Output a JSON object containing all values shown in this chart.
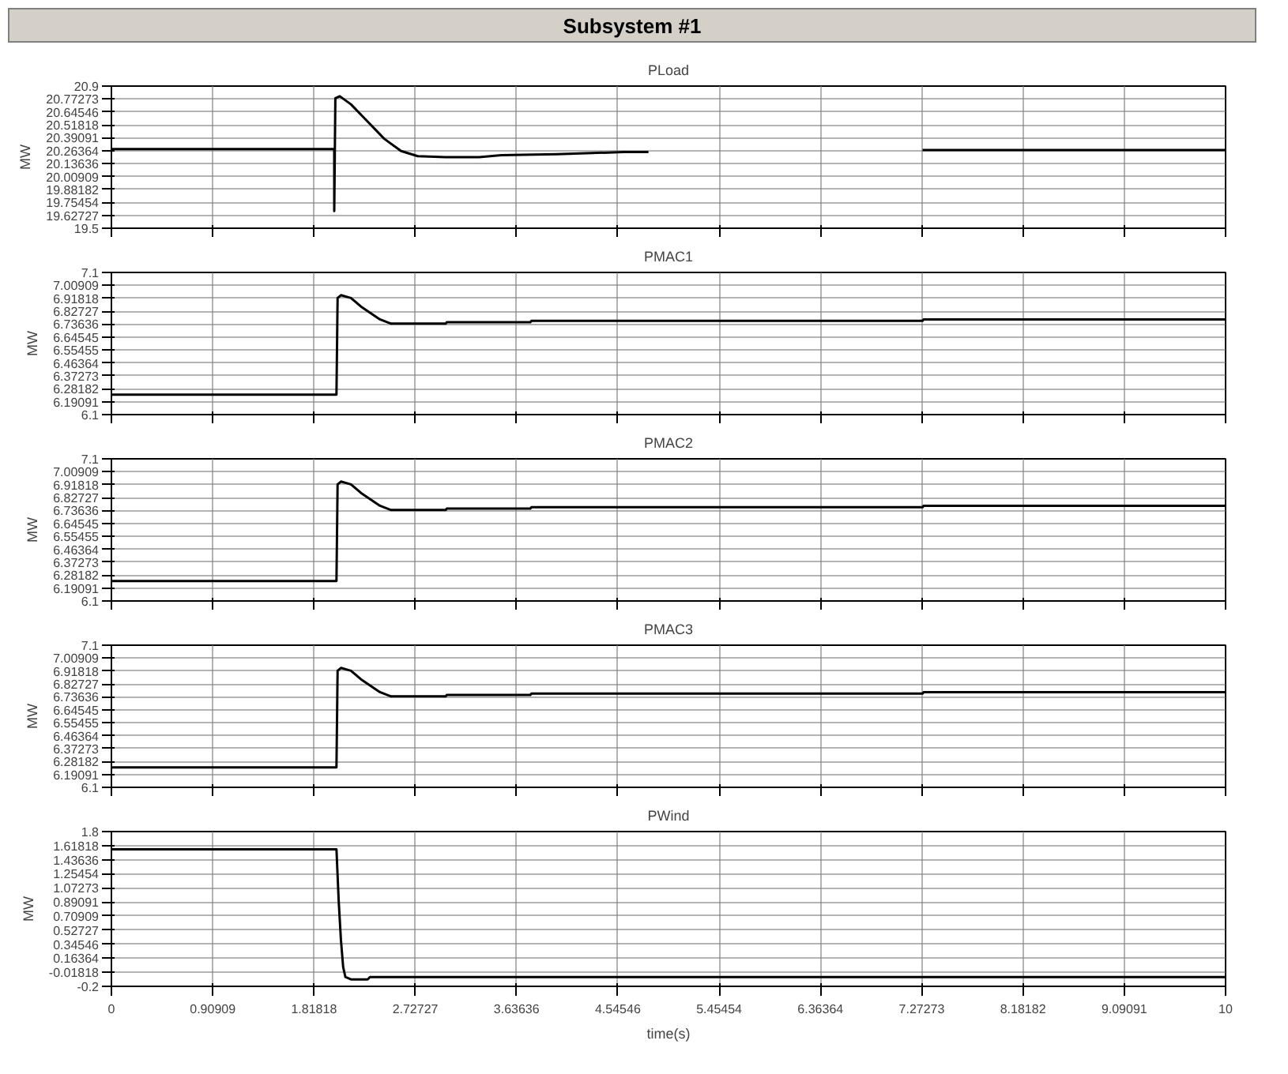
{
  "chart_data": [
    {
      "type": "line",
      "title": "Subsystem #1",
      "subtitle": "PLoad",
      "ylabel": "MW",
      "grid": true,
      "tick_labels": "y",
      "x": [
        0,
        2.0,
        2.0,
        2.01,
        2.05,
        2.15,
        2.3,
        2.45,
        2.6,
        2.75,
        3.0,
        3.3,
        3.5,
        4.0,
        4.6,
        4.82,
        4.83,
        7.27,
        7.28,
        10
      ],
      "series": [
        {
          "color": "#000000",
          "values": [
            20.28,
            20.28,
            19.67,
            20.78,
            20.8,
            20.72,
            20.55,
            20.38,
            20.26,
            20.21,
            20.2,
            20.2,
            20.22,
            20.23,
            20.25,
            20.25,
            null,
            null,
            20.27,
            20.27
          ]
        }
      ],
      "xlim": [
        0,
        10
      ],
      "xticks": [
        0,
        0.90909,
        1.81818,
        2.72727,
        3.63636,
        4.54546,
        5.45454,
        6.36364,
        7.27273,
        8.18182,
        9.09091,
        10
      ],
      "ylim": [
        19.5,
        20.9
      ],
      "yticks": [
        19.5,
        19.62727,
        19.75454,
        19.88182,
        20.00909,
        20.13636,
        20.26364,
        20.39091,
        20.51818,
        20.64546,
        20.77273,
        20.9
      ]
    },
    {
      "type": "line",
      "subtitle": "PMAC1",
      "ylabel": "MW",
      "grid": true,
      "tick_labels": "y",
      "x": [
        0,
        2.02,
        2.03,
        2.06,
        2.15,
        2.24,
        2.41,
        2.51,
        3.0,
        3.01,
        3.76,
        3.77,
        7.28,
        7.29,
        10
      ],
      "series": [
        {
          "color": "#000000",
          "values": [
            6.24,
            6.24,
            6.92,
            6.94,
            6.92,
            6.86,
            6.77,
            6.74,
            6.74,
            6.75,
            6.75,
            6.76,
            6.76,
            6.77,
            6.77
          ]
        }
      ],
      "xlim": [
        0,
        10
      ],
      "xticks": [
        0,
        0.90909,
        1.81818,
        2.72727,
        3.63636,
        4.54546,
        5.45454,
        6.36364,
        7.27273,
        8.18182,
        9.09091,
        10
      ],
      "ylim": [
        6.1,
        7.1
      ],
      "yticks": [
        6.1,
        6.19091,
        6.28182,
        6.37273,
        6.46364,
        6.55455,
        6.64545,
        6.73636,
        6.82727,
        6.91818,
        7.00909,
        7.1
      ]
    },
    {
      "type": "line",
      "subtitle": "PMAC2",
      "ylabel": "MW",
      "grid": true,
      "tick_labels": "y",
      "x": [
        0,
        2.02,
        2.03,
        2.06,
        2.15,
        2.24,
        2.41,
        2.51,
        3.0,
        3.01,
        3.76,
        3.77,
        7.28,
        7.29,
        10
      ],
      "series": [
        {
          "color": "#000000",
          "values": [
            6.24,
            6.24,
            6.92,
            6.94,
            6.92,
            6.86,
            6.77,
            6.74,
            6.74,
            6.75,
            6.75,
            6.76,
            6.76,
            6.77,
            6.77
          ]
        }
      ],
      "xlim": [
        0,
        10
      ],
      "xticks": [
        0,
        0.90909,
        1.81818,
        2.72727,
        3.63636,
        4.54546,
        5.45454,
        6.36364,
        7.27273,
        8.18182,
        9.09091,
        10
      ],
      "ylim": [
        6.1,
        7.1
      ],
      "yticks": [
        6.1,
        6.19091,
        6.28182,
        6.37273,
        6.46364,
        6.55455,
        6.64545,
        6.73636,
        6.82727,
        6.91818,
        7.00909,
        7.1
      ]
    },
    {
      "type": "line",
      "subtitle": "PMAC3",
      "ylabel": "MW",
      "grid": true,
      "tick_labels": "y",
      "x": [
        0,
        2.02,
        2.03,
        2.06,
        2.15,
        2.24,
        2.41,
        2.51,
        3.0,
        3.01,
        3.76,
        3.77,
        7.28,
        7.29,
        10
      ],
      "series": [
        {
          "color": "#000000",
          "values": [
            6.24,
            6.24,
            6.92,
            6.94,
            6.92,
            6.86,
            6.77,
            6.74,
            6.74,
            6.75,
            6.75,
            6.76,
            6.76,
            6.77,
            6.77
          ]
        }
      ],
      "xlim": [
        0,
        10
      ],
      "xticks": [
        0,
        0.90909,
        1.81818,
        2.72727,
        3.63636,
        4.54546,
        5.45454,
        6.36364,
        7.27273,
        8.18182,
        9.09091,
        10
      ],
      "ylim": [
        6.1,
        7.1
      ],
      "yticks": [
        6.1,
        6.19091,
        6.28182,
        6.37273,
        6.46364,
        6.55455,
        6.64545,
        6.73636,
        6.82727,
        6.91818,
        7.00909,
        7.1
      ]
    },
    {
      "type": "line",
      "subtitle": "PWind",
      "ylabel": "MW",
      "xlabel": "time(s)",
      "grid": true,
      "x": [
        0,
        2.02,
        2.04,
        2.06,
        2.08,
        2.1,
        2.15,
        2.3,
        2.32,
        10
      ],
      "series": [
        {
          "color": "#000000",
          "values": [
            1.57,
            1.57,
            0.9,
            0.4,
            0.05,
            -0.08,
            -0.11,
            -0.11,
            -0.08,
            -0.08
          ]
        }
      ],
      "xlim": [
        0,
        10
      ],
      "xticks": [
        0,
        0.90909,
        1.81818,
        2.72727,
        3.63636,
        4.54546,
        5.45454,
        6.36364,
        7.27273,
        8.18182,
        9.09091,
        10
      ],
      "ylim": [
        -0.2,
        1.8
      ],
      "yticks": [
        -0.2,
        -0.01818,
        0.16364,
        0.34546,
        0.52727,
        0.70909,
        0.89091,
        1.07273,
        1.25454,
        1.43636,
        1.61818,
        1.8
      ]
    }
  ]
}
